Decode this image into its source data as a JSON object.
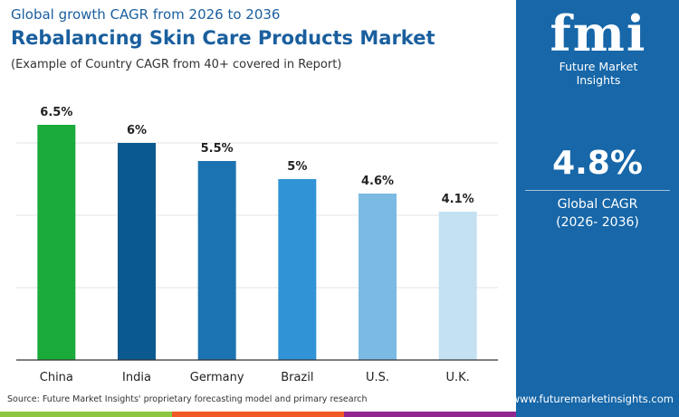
{
  "header": {
    "subtitle": "Global growth CAGR from 2026 to 2036",
    "title": "Rebalancing Skin Care Products Market",
    "note": "(Example of Country CAGR from 40+ covered in Report)"
  },
  "chart_data": {
    "type": "bar",
    "categories": [
      "China",
      "India",
      "Germany",
      "Brazil",
      "U.S.",
      "U.K."
    ],
    "values": [
      6.5,
      6,
      5.5,
      5,
      4.6,
      4.1
    ],
    "data_labels": [
      "6.5%",
      "6%",
      "5.5%",
      "5%",
      "4.6%",
      "4.1%"
    ],
    "colors": [
      "#1aab3a",
      "#0b5a8f",
      "#1c73b1",
      "#2f93d6",
      "#7bbae3",
      "#c4e1f2"
    ],
    "ylim": [
      0,
      8
    ],
    "grid": true,
    "xlabel": "",
    "ylabel": ""
  },
  "source": "Source: Future Market Insights' proprietary forecasting model and primary research",
  "panel": {
    "logo_text": "fmi",
    "brand": "Future Market Insights",
    "cagr": "4.8%",
    "cagr_label": "Global CAGR",
    "cagr_period": "(2026- 2036)",
    "url": "www.futuremarketinsights.com",
    "color": "#1767a9"
  },
  "strip_colors": [
    "#8dc63f",
    "#f15a24",
    "#92278f"
  ]
}
